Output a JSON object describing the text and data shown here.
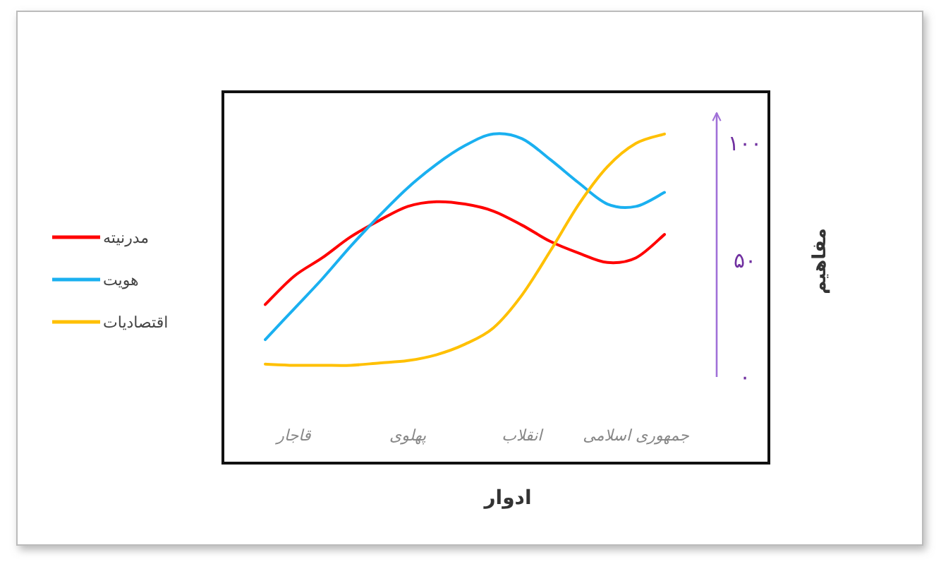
{
  "chart_data": {
    "type": "line",
    "xlabel": "ادوار",
    "ylabel": "مفاهیم",
    "legend": "left",
    "ylim": [
      0,
      113
    ],
    "categories": [
      null,
      "قاجار",
      null,
      null,
      null,
      "پهلوی",
      null,
      null,
      null,
      "انقلاب",
      null,
      null,
      null,
      "جمهوری اسلامی",
      null
    ],
    "yticks": [
      {
        "value": 0,
        "label": "۰"
      },
      {
        "value": 50,
        "label": "۵۰"
      },
      {
        "value": 100,
        "label": "۱۰۰"
      }
    ],
    "series": [
      {
        "name": "مدرنیته",
        "color": "#ff0000",
        "values": [
          31,
          43,
          51,
          60,
          67,
          73,
          75,
          74,
          71,
          65,
          58,
          53,
          49,
          51,
          61
        ]
      },
      {
        "name": "هویت",
        "color": "#1ab0f0",
        "values": [
          16,
          29,
          42,
          56,
          69,
          81,
          91,
          99,
          104,
          102,
          93,
          83,
          74,
          73,
          79
        ]
      },
      {
        "name": "اقتصادیات",
        "color": "#ffc000",
        "values": [
          5.5,
          5,
          5,
          5,
          6,
          7,
          9.5,
          14,
          21,
          35,
          54,
          74,
          90,
          100,
          104
        ]
      }
    ]
  }
}
